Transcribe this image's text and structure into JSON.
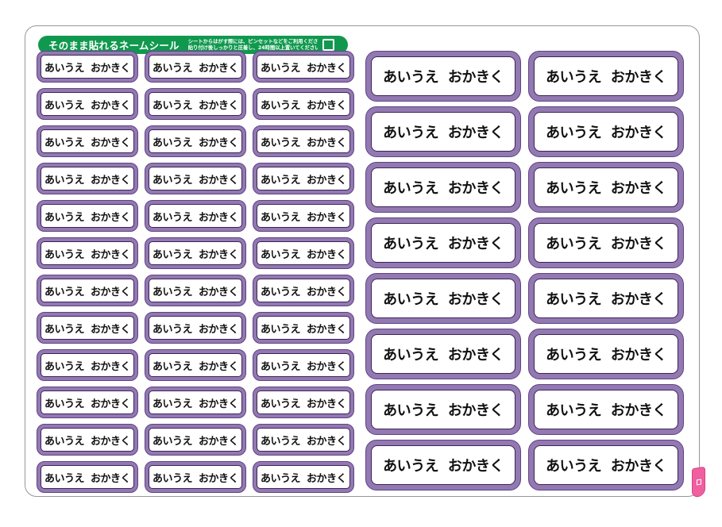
{
  "sheet": {
    "banner": {
      "title": "そのまま貼れるネームシール",
      "note_line1": "シートからはがす際には、ピンセットなどをご利用ください。",
      "note_line2": "貼り付け後しっかりと圧着し、24時間以上置いてください。",
      "color": "#10994e"
    },
    "sticker_label": "あいうえ おかきく",
    "small_grid": {
      "columns": 3,
      "rows": 12,
      "count": 36
    },
    "large_grid": {
      "columns": 2,
      "rows": 8,
      "count": 16
    },
    "colors": {
      "sticker_ring_purple": "#9379b2",
      "sticker_ring_edge": "#5f4382",
      "sticker_inner_line": "#3c2257",
      "banner_green": "#10994e",
      "peel_tab_pink": "#f05f9f",
      "label_text": "#111111"
    }
  }
}
